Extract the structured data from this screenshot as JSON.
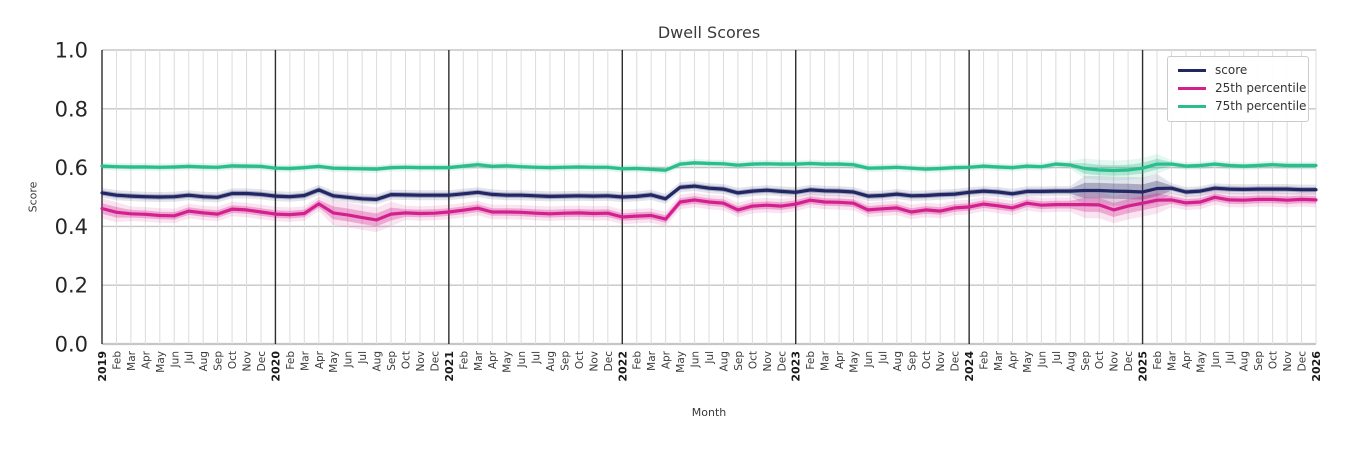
{
  "chart": {
    "title": "Dwell Scores",
    "xlabel": "Month",
    "ylabel": "Score"
  },
  "legend": {
    "items": [
      {
        "label": "score",
        "color": "#222663"
      },
      {
        "label": "25th percentile",
        "color": "#d4208f"
      },
      {
        "label": "75th percentile",
        "color": "#2bbd8e"
      }
    ]
  },
  "chart_data": {
    "type": "line",
    "title": "Dwell Scores",
    "xlabel": "Month",
    "ylabel": "Score",
    "ylim": [
      0.0,
      1.0
    ],
    "yticks": [
      "0.0",
      "0.2",
      "0.4",
      "0.6",
      "0.8",
      "1.0"
    ],
    "grid": true,
    "legend_position": "upper right",
    "x_tick_labels": [
      "2019",
      "Feb",
      "Mar",
      "Apr",
      "May",
      "Jun",
      "Jul",
      "Aug",
      "Sep",
      "Oct",
      "Nov",
      "Dec",
      "2020",
      "Feb",
      "Mar",
      "Apr",
      "May",
      "Jun",
      "Jul",
      "Aug",
      "Sep",
      "Oct",
      "Nov",
      "Dec",
      "2021",
      "Feb",
      "Mar",
      "Apr",
      "May",
      "Jun",
      "Jul",
      "Aug",
      "Sep",
      "Oct",
      "Nov",
      "Dec",
      "2022",
      "Feb",
      "Mar",
      "Apr",
      "May",
      "Jun",
      "Jul",
      "Aug",
      "Sep",
      "Oct",
      "Nov",
      "Dec",
      "2023",
      "Feb",
      "Mar",
      "Apr",
      "May",
      "Jun",
      "Jul",
      "Aug",
      "Sep",
      "Oct",
      "Nov",
      "Dec",
      "2024",
      "Feb",
      "Mar",
      "Apr",
      "May",
      "Jun",
      "Jul",
      "Aug",
      "Sep",
      "Oct",
      "Nov",
      "Dec",
      "2025",
      "Feb",
      "Mar",
      "Apr",
      "May",
      "Jun",
      "Jul",
      "Aug",
      "Sep",
      "Oct",
      "Nov",
      "Dec",
      "2026"
    ],
    "year_line_indices": [
      0,
      12,
      24,
      36,
      48,
      60,
      72
    ],
    "series": [
      {
        "name": "score",
        "color": "#222663",
        "band_halfwidth": 0.009,
        "band_wide": [
          {
            "from": 68,
            "to": 73,
            "halfwidth": 0.026
          }
        ],
        "values": [
          0.514,
          0.506,
          0.503,
          0.501,
          0.5,
          0.501,
          0.506,
          0.501,
          0.499,
          0.512,
          0.512,
          0.509,
          0.503,
          0.501,
          0.505,
          0.524,
          0.504,
          0.499,
          0.494,
          0.492,
          0.508,
          0.507,
          0.506,
          0.506,
          0.506,
          0.511,
          0.516,
          0.509,
          0.506,
          0.506,
          0.504,
          0.502,
          0.503,
          0.504,
          0.503,
          0.504,
          0.5,
          0.502,
          0.507,
          0.494,
          0.533,
          0.537,
          0.53,
          0.527,
          0.514,
          0.52,
          0.523,
          0.519,
          0.516,
          0.524,
          0.521,
          0.52,
          0.517,
          0.503,
          0.505,
          0.51,
          0.504,
          0.505,
          0.508,
          0.51,
          0.516,
          0.52,
          0.517,
          0.511,
          0.519,
          0.519,
          0.52,
          0.52,
          0.522,
          0.522,
          0.52,
          0.519,
          0.517,
          0.529,
          0.53,
          0.517,
          0.52,
          0.53,
          0.527,
          0.526,
          0.527,
          0.527,
          0.527,
          0.525,
          0.525
        ]
      },
      {
        "name": "25th percentile",
        "color": "#d4208f",
        "band_halfwidth": 0.013,
        "band_wide": [
          {
            "from": 0,
            "to": 1,
            "halfwidth": 0.018
          },
          {
            "from": 16,
            "to": 20,
            "halfwidth": 0.022
          },
          {
            "from": 68,
            "to": 73,
            "halfwidth": 0.024
          }
        ],
        "values": [
          0.461,
          0.448,
          0.443,
          0.441,
          0.437,
          0.436,
          0.452,
          0.446,
          0.442,
          0.459,
          0.456,
          0.449,
          0.442,
          0.44,
          0.444,
          0.477,
          0.446,
          0.439,
          0.43,
          0.422,
          0.442,
          0.446,
          0.444,
          0.445,
          0.449,
          0.455,
          0.462,
          0.449,
          0.449,
          0.448,
          0.445,
          0.443,
          0.445,
          0.446,
          0.444,
          0.445,
          0.432,
          0.435,
          0.437,
          0.425,
          0.483,
          0.49,
          0.483,
          0.479,
          0.456,
          0.469,
          0.472,
          0.469,
          0.476,
          0.489,
          0.483,
          0.482,
          0.479,
          0.456,
          0.46,
          0.463,
          0.449,
          0.456,
          0.452,
          0.463,
          0.466,
          0.476,
          0.47,
          0.463,
          0.479,
          0.472,
          0.474,
          0.474,
          0.474,
          0.473,
          0.456,
          0.469,
          0.479,
          0.489,
          0.49,
          0.48,
          0.483,
          0.499,
          0.49,
          0.489,
          0.492,
          0.492,
          0.489,
          0.492,
          0.49
        ]
      },
      {
        "name": "75th percentile",
        "color": "#2bbd8e",
        "band_halfwidth": 0.007,
        "band_wide": [
          {
            "from": 68,
            "to": 73,
            "halfwidth": 0.018
          }
        ],
        "values": [
          0.605,
          0.603,
          0.602,
          0.602,
          0.601,
          0.602,
          0.604,
          0.602,
          0.601,
          0.606,
          0.605,
          0.604,
          0.598,
          0.597,
          0.6,
          0.604,
          0.598,
          0.597,
          0.596,
          0.595,
          0.6,
          0.601,
          0.6,
          0.6,
          0.6,
          0.605,
          0.61,
          0.604,
          0.606,
          0.603,
          0.601,
          0.6,
          0.601,
          0.602,
          0.601,
          0.601,
          0.596,
          0.597,
          0.594,
          0.591,
          0.612,
          0.616,
          0.614,
          0.613,
          0.608,
          0.612,
          0.613,
          0.612,
          0.612,
          0.614,
          0.612,
          0.612,
          0.61,
          0.598,
          0.599,
          0.601,
          0.598,
          0.595,
          0.597,
          0.6,
          0.601,
          0.605,
          0.602,
          0.6,
          0.605,
          0.603,
          0.612,
          0.609,
          0.597,
          0.592,
          0.59,
          0.592,
          0.598,
          0.612,
          0.612,
          0.605,
          0.607,
          0.612,
          0.607,
          0.605,
          0.607,
          0.61,
          0.607,
          0.607,
          0.607
        ]
      }
    ]
  }
}
